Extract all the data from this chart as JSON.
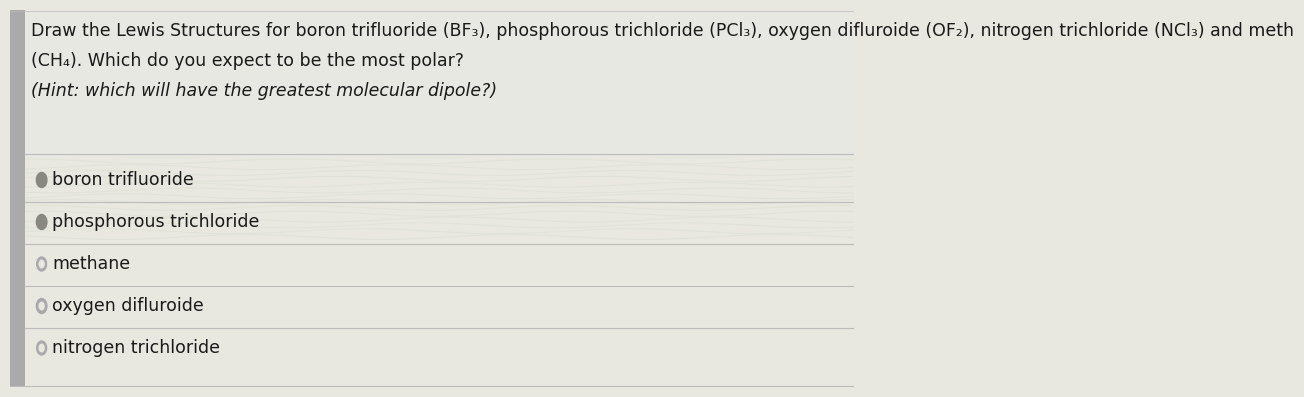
{
  "title_line1": "Draw the Lewis Structures for boron trifluoride (BF₃), phosphorous trichloride (PCl₃), oxygen difluroide (OF₂), nitrogen trichloride (NCl₃) and meth",
  "title_line2": "(CH₄). Which do you expect to be the most polar?",
  "hint_line": "(Hint: which will have the greatest molecular dipole?)",
  "options": [
    "boron trifluoride",
    "phosphorous trichloride",
    "methane",
    "oxygen difluroide",
    "nitrogen trichloride"
  ],
  "background_color": "#e8e8e0",
  "text_color": "#1a1a1a",
  "title_fontsize": 12.5,
  "hint_fontsize": 12.5,
  "option_fontsize": 12.5,
  "radio_colors": [
    "#888880",
    "#888880",
    "#aaaaaa",
    "#aaaaaa",
    "#aaaaaa"
  ],
  "line_color": "#bbbbbb",
  "sidebar_color": "#aaaaaa",
  "panel_bg": "#d4d4c0"
}
